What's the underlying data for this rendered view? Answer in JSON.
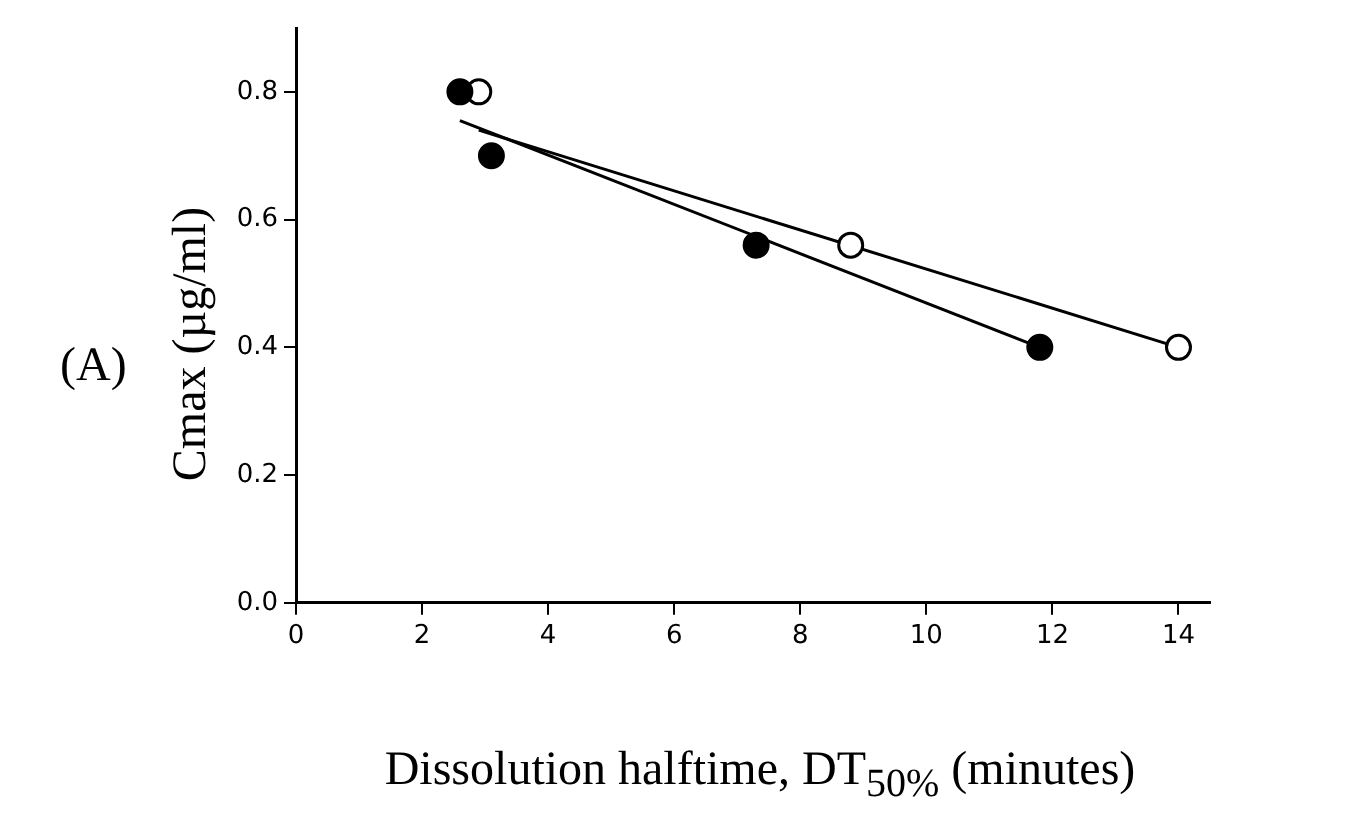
{
  "chart_data": {
    "type": "scatter",
    "xlabel": "Dissolution halftime, DT$_{50%}$ (minutes)",
    "ylabel": "Cmax (µg/ml)",
    "annotations": [
      "(A)"
    ],
    "xlim": [
      0,
      14.5
    ],
    "xticks": [
      0,
      2,
      4,
      6,
      8,
      10,
      12,
      14
    ],
    "ylim": [
      0,
      0.9
    ],
    "yticks": [
      {
        "value": 0,
        "label": "0.0"
      },
      {
        "value": 0.2,
        "label": "0.2"
      },
      {
        "value": 0.4,
        "label": "0.4"
      },
      {
        "value": 0.6,
        "label": "0.6"
      },
      {
        "value": 0.8,
        "label": "0.8"
      }
    ],
    "grid": false,
    "legend": false,
    "marker": "circle",
    "series": [
      {
        "type": "scatter",
        "color": "#000000",
        "x": [
          2.6,
          3.1,
          7.3,
          11.8
        ],
        "values": [
          0.8,
          0.7,
          0.56,
          0.4
        ]
      },
      {
        "type": "scatter",
        "color": "#ffffff",
        "x": [
          2.9,
          8.8,
          14.0
        ],
        "values": [
          0.8,
          0.56,
          0.4
        ]
      },
      {
        "type": "line",
        "color": "#000000",
        "marker": "none",
        "x": [
          2.6,
          11.8
        ],
        "values": [
          0.755,
          0.4
        ]
      },
      {
        "type": "line",
        "color": "#000000",
        "marker": "none",
        "x": [
          2.9,
          14.0
        ],
        "values": [
          0.74,
          0.4
        ]
      }
    ]
  }
}
